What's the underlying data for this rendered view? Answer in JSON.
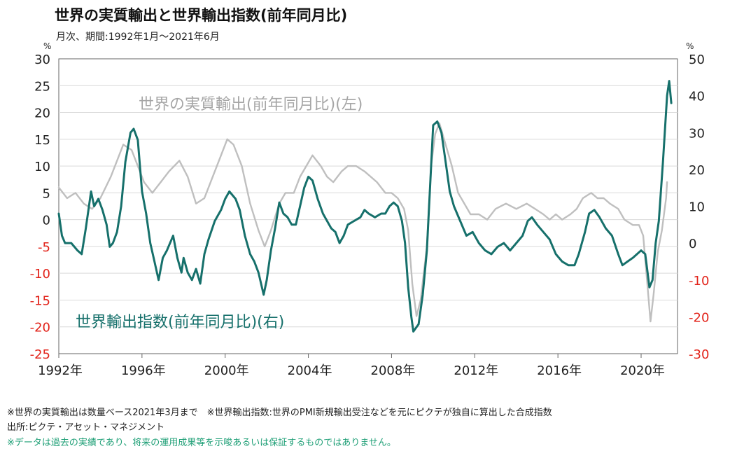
{
  "title": "世界の実質輸出と世界輸出指数(前年同月比)",
  "subtitle": "月次、期間:1992年1月～2021年6月",
  "notes": {
    "line1": "※世界の実質輸出は数量ベース2021年3月まで　※世界輸出指数:世界のPMI新規輸出受注などを元にピクテが独自に算出した合成指数",
    "line2": "出所:ピクテ・アセット・マネジメント",
    "line3": "※データは過去の実績であり、将来の運用成果等を示唆あるいは保証するものではありません。"
  },
  "colors": {
    "real_exports": "#bfbfbf",
    "export_index": "#16706b",
    "negative_tick": "#e2231a",
    "axis": "#666666",
    "grid": "#d9d9d9",
    "note_green": "#1e9f76"
  },
  "chart_data": {
    "type": "line",
    "x_axis": {
      "ticks": [
        "1992年",
        "1996年",
        "2000年",
        "2004年",
        "2008年",
        "2012年",
        "2016年",
        "2020年"
      ],
      "tick_years": [
        1992,
        1996,
        2000,
        2004,
        2008,
        2012,
        2016,
        2020
      ],
      "range": [
        1992.0,
        2021.75
      ]
    },
    "y_left": {
      "unit": "%",
      "ticks": [
        "30",
        "25",
        "20",
        "15",
        "10",
        "5",
        "0",
        "-5",
        "-10",
        "-15",
        "-20",
        "-25"
      ],
      "range": [
        -25,
        30
      ]
    },
    "y_right": {
      "unit": "%",
      "ticks": [
        "50",
        "40",
        "30",
        "20",
        "10",
        "0",
        "-10",
        "-20",
        "-30"
      ],
      "range": [
        -30,
        50
      ]
    },
    "series": [
      {
        "name": "世界の実質輸出(前年同月比)(左)",
        "axis": "left",
        "label_text": "世界の実質輸出(前年同月比)(左)",
        "points": [
          [
            1992.0,
            6
          ],
          [
            1992.4,
            4
          ],
          [
            1992.8,
            5
          ],
          [
            1993.2,
            3
          ],
          [
            1993.6,
            2
          ],
          [
            1994.0,
            4
          ],
          [
            1994.5,
            8
          ],
          [
            1994.9,
            12
          ],
          [
            1995.1,
            14
          ],
          [
            1995.5,
            13
          ],
          [
            1995.8,
            10
          ],
          [
            1996.1,
            7
          ],
          [
            1996.5,
            5
          ],
          [
            1996.9,
            7
          ],
          [
            1997.3,
            9
          ],
          [
            1997.8,
            11
          ],
          [
            1998.2,
            8
          ],
          [
            1998.6,
            3
          ],
          [
            1999.0,
            4
          ],
          [
            1999.4,
            8
          ],
          [
            1999.8,
            12
          ],
          [
            2000.1,
            15
          ],
          [
            2000.4,
            14
          ],
          [
            2000.8,
            10
          ],
          [
            2001.2,
            3
          ],
          [
            2001.6,
            -2
          ],
          [
            2001.9,
            -5
          ],
          [
            2002.2,
            -2
          ],
          [
            2002.6,
            3
          ],
          [
            2002.9,
            5
          ],
          [
            2003.3,
            5
          ],
          [
            2003.6,
            8
          ],
          [
            2003.9,
            10
          ],
          [
            2004.2,
            12
          ],
          [
            2004.6,
            10
          ],
          [
            2004.9,
            8
          ],
          [
            2005.2,
            7
          ],
          [
            2005.6,
            9
          ],
          [
            2005.9,
            10
          ],
          [
            2006.3,
            10
          ],
          [
            2006.7,
            9
          ],
          [
            2007.0,
            8
          ],
          [
            2007.3,
            7
          ],
          [
            2007.7,
            5
          ],
          [
            2008.0,
            5
          ],
          [
            2008.3,
            4
          ],
          [
            2008.6,
            2
          ],
          [
            2008.8,
            -2
          ],
          [
            2009.0,
            -12
          ],
          [
            2009.2,
            -18
          ],
          [
            2009.4,
            -15
          ],
          [
            2009.7,
            -5
          ],
          [
            2009.9,
            10
          ],
          [
            2010.1,
            16
          ],
          [
            2010.3,
            18
          ],
          [
            2010.6,
            14
          ],
          [
            2010.9,
            10
          ],
          [
            2011.2,
            5
          ],
          [
            2011.5,
            3
          ],
          [
            2011.8,
            1
          ],
          [
            2012.2,
            1
          ],
          [
            2012.6,
            0
          ],
          [
            2013.0,
            2
          ],
          [
            2013.5,
            3
          ],
          [
            2014.0,
            2
          ],
          [
            2014.5,
            3
          ],
          [
            2014.9,
            2
          ],
          [
            2015.3,
            1
          ],
          [
            2015.6,
            0
          ],
          [
            2015.9,
            1
          ],
          [
            2016.2,
            0
          ],
          [
            2016.6,
            1
          ],
          [
            2016.9,
            2
          ],
          [
            2017.2,
            4
          ],
          [
            2017.6,
            5
          ],
          [
            2017.9,
            4
          ],
          [
            2018.2,
            4
          ],
          [
            2018.5,
            3
          ],
          [
            2018.9,
            2
          ],
          [
            2019.2,
            0
          ],
          [
            2019.6,
            -1
          ],
          [
            2019.9,
            -1
          ],
          [
            2020.1,
            -3
          ],
          [
            2020.3,
            -12
          ],
          [
            2020.45,
            -19
          ],
          [
            2020.6,
            -14
          ],
          [
            2020.8,
            -6
          ],
          [
            2021.0,
            -2
          ],
          [
            2021.2,
            4
          ],
          [
            2021.25,
            7
          ]
        ]
      },
      {
        "name": "世界輸出指数(前年同月比)(右)",
        "axis": "right",
        "label_text": "世界輸出指数(前年同月比)(右)",
        "points": [
          [
            1992.0,
            8
          ],
          [
            1992.15,
            2
          ],
          [
            1992.3,
            0
          ],
          [
            1992.6,
            0
          ],
          [
            1992.9,
            -2
          ],
          [
            1993.1,
            -3
          ],
          [
            1993.3,
            4
          ],
          [
            1993.55,
            14
          ],
          [
            1993.7,
            10
          ],
          [
            1993.9,
            12
          ],
          [
            1994.1,
            9
          ],
          [
            1994.3,
            5
          ],
          [
            1994.45,
            -1
          ],
          [
            1994.6,
            0
          ],
          [
            1994.8,
            3
          ],
          [
            1995.0,
            10
          ],
          [
            1995.2,
            22
          ],
          [
            1995.45,
            30
          ],
          [
            1995.6,
            31
          ],
          [
            1995.8,
            28
          ],
          [
            1996.0,
            14
          ],
          [
            1996.2,
            8
          ],
          [
            1996.4,
            0
          ],
          [
            1996.6,
            -5
          ],
          [
            1996.8,
            -10
          ],
          [
            1997.0,
            -4
          ],
          [
            1997.2,
            -2
          ],
          [
            1997.5,
            2
          ],
          [
            1997.7,
            -4
          ],
          [
            1997.9,
            -8
          ],
          [
            1998.0,
            -4
          ],
          [
            1998.2,
            -8
          ],
          [
            1998.4,
            -10
          ],
          [
            1998.6,
            -7
          ],
          [
            1998.8,
            -11
          ],
          [
            1999.0,
            -3
          ],
          [
            1999.2,
            1
          ],
          [
            1999.5,
            6
          ],
          [
            1999.8,
            9
          ],
          [
            2000.0,
            12
          ],
          [
            2000.2,
            14
          ],
          [
            2000.5,
            12
          ],
          [
            2000.7,
            9
          ],
          [
            2000.95,
            2
          ],
          [
            2001.2,
            -3
          ],
          [
            2001.4,
            -5
          ],
          [
            2001.6,
            -8
          ],
          [
            2001.85,
            -14
          ],
          [
            2002.0,
            -10
          ],
          [
            2002.2,
            -2
          ],
          [
            2002.4,
            4
          ],
          [
            2002.6,
            11
          ],
          [
            2002.8,
            8
          ],
          [
            2003.0,
            7
          ],
          [
            2003.2,
            5
          ],
          [
            2003.4,
            5
          ],
          [
            2003.6,
            10
          ],
          [
            2003.8,
            15
          ],
          [
            2004.0,
            18
          ],
          [
            2004.2,
            17
          ],
          [
            2004.45,
            12
          ],
          [
            2004.7,
            8
          ],
          [
            2004.9,
            6
          ],
          [
            2005.1,
            4
          ],
          [
            2005.3,
            3
          ],
          [
            2005.5,
            0
          ],
          [
            2005.7,
            2
          ],
          [
            2005.9,
            5
          ],
          [
            2006.2,
            6
          ],
          [
            2006.5,
            7
          ],
          [
            2006.7,
            9
          ],
          [
            2006.9,
            8
          ],
          [
            2007.2,
            7
          ],
          [
            2007.5,
            8
          ],
          [
            2007.7,
            8
          ],
          [
            2007.9,
            10
          ],
          [
            2008.1,
            11
          ],
          [
            2008.3,
            10
          ],
          [
            2008.5,
            6
          ],
          [
            2008.65,
            0
          ],
          [
            2008.8,
            -12
          ],
          [
            2008.95,
            -20
          ],
          [
            2009.05,
            -24
          ],
          [
            2009.3,
            -22
          ],
          [
            2009.5,
            -14
          ],
          [
            2009.7,
            -2
          ],
          [
            2009.85,
            15
          ],
          [
            2010.0,
            32
          ],
          [
            2010.2,
            33
          ],
          [
            2010.4,
            30
          ],
          [
            2010.6,
            22
          ],
          [
            2010.8,
            14
          ],
          [
            2011.0,
            10
          ],
          [
            2011.3,
            6
          ],
          [
            2011.6,
            2
          ],
          [
            2011.9,
            3
          ],
          [
            2012.2,
            0
          ],
          [
            2012.5,
            -2
          ],
          [
            2012.8,
            -3
          ],
          [
            2013.1,
            -1
          ],
          [
            2013.4,
            0
          ],
          [
            2013.7,
            -2
          ],
          [
            2014.0,
            0
          ],
          [
            2014.3,
            2
          ],
          [
            2014.55,
            6
          ],
          [
            2014.75,
            7
          ],
          [
            2015.0,
            5
          ],
          [
            2015.3,
            3
          ],
          [
            2015.6,
            1
          ],
          [
            2015.9,
            -3
          ],
          [
            2016.2,
            -5
          ],
          [
            2016.5,
            -6
          ],
          [
            2016.8,
            -6
          ],
          [
            2017.0,
            -3
          ],
          [
            2017.3,
            3
          ],
          [
            2017.5,
            8
          ],
          [
            2017.75,
            9
          ],
          [
            2018.0,
            7
          ],
          [
            2018.3,
            4
          ],
          [
            2018.6,
            2
          ],
          [
            2018.9,
            -3
          ],
          [
            2019.1,
            -6
          ],
          [
            2019.35,
            -5
          ],
          [
            2019.6,
            -4
          ],
          [
            2019.8,
            -3
          ],
          [
            2020.0,
            -2
          ],
          [
            2020.2,
            -3
          ],
          [
            2020.4,
            -12
          ],
          [
            2020.55,
            -10
          ],
          [
            2020.7,
            0
          ],
          [
            2020.85,
            6
          ],
          [
            2021.05,
            22
          ],
          [
            2021.25,
            40
          ],
          [
            2021.35,
            44
          ],
          [
            2021.45,
            38
          ]
        ]
      }
    ]
  }
}
